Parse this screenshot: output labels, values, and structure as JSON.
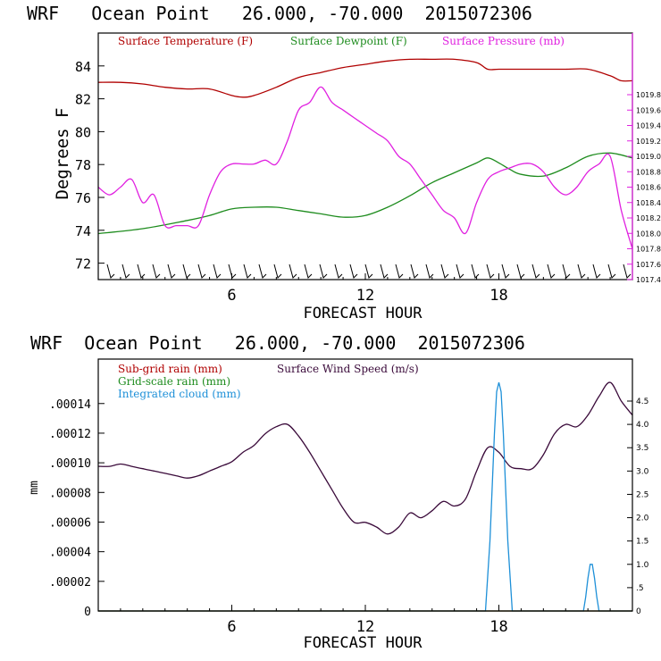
{
  "colors": {
    "temperature": "#b00000",
    "dewpoint": "#1e8c1e",
    "pressure": "#e020e0",
    "wind": "#3a0a3a",
    "cloud": "#1e90d8",
    "axis": "#000000"
  },
  "chart_data": [
    {
      "type": "line",
      "title": "WRF   Ocean Point   26.000, -70.000  2015072306",
      "xlabel": "FORECAST HOUR",
      "ylabel": "Degrees F",
      "xlim": [
        0,
        24
      ],
      "ylim": [
        71,
        86
      ],
      "y2lim": [
        1017.4,
        1020.6
      ],
      "x_ticks": [
        6,
        12,
        18
      ],
      "y_ticks": [
        72,
        74,
        76,
        78,
        80,
        82,
        84
      ],
      "y2_ticks": [
        "1017.4",
        "1017.6",
        "1017.8",
        "1018.0",
        "1018.2",
        "1018.4",
        "1018.6",
        "1018.8",
        "1019.0",
        "1019.2",
        "1019.4",
        "1019.6",
        "1019.8"
      ],
      "y2_tick_values": [
        1017.4,
        1017.6,
        1017.8,
        1018.0,
        1018.2,
        1018.4,
        1018.6,
        1018.8,
        1019.0,
        1019.2,
        1019.4,
        1019.6,
        1019.8
      ],
      "legend": [
        "Surface Temperature (F)",
        "Surface Dewpoint (F)",
        "Surface Pressure (mb)"
      ],
      "series": [
        {
          "name": "Surface Temperature (F)",
          "axis": "left",
          "x": [
            0,
            1,
            2,
            3,
            4,
            5,
            6,
            6.5,
            7,
            8,
            9,
            10,
            11,
            12,
            13,
            14,
            15,
            16,
            17,
            17.5,
            18,
            19,
            20,
            21,
            22,
            23,
            23.5,
            24
          ],
          "values": [
            83.0,
            83.0,
            82.9,
            82.7,
            82.6,
            82.6,
            82.2,
            82.1,
            82.2,
            82.7,
            83.3,
            83.6,
            83.9,
            84.1,
            84.3,
            84.4,
            84.4,
            84.4,
            84.2,
            83.8,
            83.8,
            83.8,
            83.8,
            83.8,
            83.8,
            83.4,
            83.1,
            83.1
          ]
        },
        {
          "name": "Surface Dewpoint (F)",
          "axis": "left",
          "x": [
            0,
            2,
            4,
            5,
            6,
            7,
            8,
            9,
            10,
            11,
            12,
            13,
            14,
            15,
            16,
            17,
            17.5,
            18,
            18.5,
            19,
            20,
            21,
            22,
            23,
            24
          ],
          "values": [
            73.8,
            74.1,
            74.6,
            74.9,
            75.3,
            75.4,
            75.4,
            75.2,
            75.0,
            74.8,
            74.9,
            75.4,
            76.1,
            76.9,
            77.5,
            78.1,
            78.4,
            78.1,
            77.7,
            77.4,
            77.3,
            77.8,
            78.5,
            78.7,
            78.4
          ]
        },
        {
          "name": "Surface Pressure (mb)",
          "axis": "right",
          "x": [
            0,
            0.5,
            1,
            1.5,
            2,
            2.5,
            3,
            3.5,
            4,
            4.5,
            5,
            5.5,
            6,
            6.5,
            7,
            7.5,
            8,
            8.5,
            9,
            9.5,
            10,
            10.5,
            11,
            11.5,
            12,
            12.5,
            13,
            13.5,
            14,
            14.5,
            15,
            15.5,
            16,
            16.5,
            17,
            17.5,
            18,
            18.5,
            19,
            19.5,
            20,
            20.5,
            21,
            21.5,
            22,
            22.5,
            23,
            23.5,
            24
          ],
          "values": [
            1018.6,
            1018.5,
            1018.6,
            1018.7,
            1018.4,
            1018.5,
            1018.1,
            1018.1,
            1018.1,
            1018.1,
            1018.5,
            1018.8,
            1018.9,
            1018.9,
            1018.9,
            1018.95,
            1018.9,
            1019.2,
            1019.6,
            1019.7,
            1019.9,
            1019.7,
            1019.6,
            1019.5,
            1019.4,
            1019.3,
            1019.2,
            1019.0,
            1018.9,
            1018.7,
            1018.5,
            1018.3,
            1018.2,
            1018.0,
            1018.4,
            1018.7,
            1018.8,
            1018.85,
            1018.9,
            1018.9,
            1018.8,
            1018.6,
            1018.5,
            1018.6,
            1018.8,
            1018.9,
            1019.0,
            1018.3,
            1017.8
          ]
        }
      ],
      "wind_barb_count": 35
    },
    {
      "type": "line",
      "title": "WRF  Ocean Point   26.000, -70.000  2015072306",
      "xlabel": "FORECAST HOUR",
      "ylabel": "mm",
      "xlim": [
        0,
        24
      ],
      "ylim": [
        0,
        0.00017
      ],
      "y2lim": [
        0,
        5.4
      ],
      "x_ticks": [
        6,
        12,
        18
      ],
      "y_ticks": [
        "0",
        ".00002",
        ".00004",
        ".00006",
        ".00008",
        ".00010",
        ".00012",
        ".00014"
      ],
      "y_tick_values": [
        0,
        2e-05,
        4e-05,
        6e-05,
        8e-05,
        0.0001,
        0.00012,
        0.00014
      ],
      "y2_ticks": [
        "0",
        ".5",
        "1.0",
        "1.5",
        "2.0",
        "2.5",
        "3.0",
        "3.5",
        "4.0",
        "4.5"
      ],
      "y2_tick_values": [
        0,
        0.5,
        1.0,
        1.5,
        2.0,
        2.5,
        3.0,
        3.5,
        4.0,
        4.5
      ],
      "legend": [
        "Sub-grid rain (mm)",
        "Grid-scale rain (mm)",
        "Integrated cloud (mm)",
        "Surface Wind Speed (m/s)"
      ],
      "series": [
        {
          "name": "Surface Wind Speed (m/s)",
          "axis": "right",
          "x": [
            0,
            0.5,
            1,
            1.5,
            2,
            2.5,
            3,
            3.5,
            4,
            4.5,
            5,
            5.5,
            6,
            6.5,
            7,
            7.5,
            8,
            8.5,
            9,
            9.5,
            10,
            10.5,
            11,
            11.5,
            12,
            12.5,
            13,
            13.5,
            14,
            14.5,
            15,
            15.5,
            16,
            16.5,
            17,
            17.5,
            18,
            18.5,
            19,
            19.5,
            20,
            20.5,
            21,
            21.5,
            22,
            22.5,
            23,
            23.5,
            24
          ],
          "values": [
            3.1,
            3.1,
            3.15,
            3.1,
            3.05,
            3.0,
            2.95,
            2.9,
            2.85,
            2.9,
            3.0,
            3.1,
            3.2,
            3.4,
            3.55,
            3.8,
            3.95,
            4.0,
            3.75,
            3.4,
            3.0,
            2.6,
            2.2,
            1.9,
            1.9,
            1.8,
            1.65,
            1.8,
            2.1,
            2.0,
            2.15,
            2.35,
            2.25,
            2.4,
            3.0,
            3.5,
            3.4,
            3.1,
            3.05,
            3.05,
            3.35,
            3.8,
            4.0,
            3.95,
            4.2,
            4.6,
            4.9,
            4.5,
            4.2
          ]
        },
        {
          "name": "Integrated cloud (mm)",
          "axis": "right",
          "x": [
            0,
            17.4,
            17.6,
            17.8,
            17.9,
            18.0,
            18.1,
            18.2,
            18.4,
            18.6,
            18.8,
            21.8,
            21.9,
            22.0,
            22.1,
            22.2,
            22.3,
            22.4,
            22.5,
            24
          ],
          "values": [
            0,
            0,
            1.5,
            3.8,
            4.7,
            4.9,
            4.7,
            3.8,
            1.5,
            0,
            0,
            0,
            0.3,
            0.7,
            1.0,
            1.0,
            0.7,
            0.3,
            0,
            0
          ]
        },
        {
          "name": "Sub-grid rain (mm)",
          "axis": "left",
          "x": [
            0,
            24
          ],
          "values": [
            0,
            0
          ]
        },
        {
          "name": "Grid-scale rain (mm)",
          "axis": "left",
          "x": [
            0,
            24
          ],
          "values": [
            0,
            0
          ]
        }
      ]
    }
  ]
}
